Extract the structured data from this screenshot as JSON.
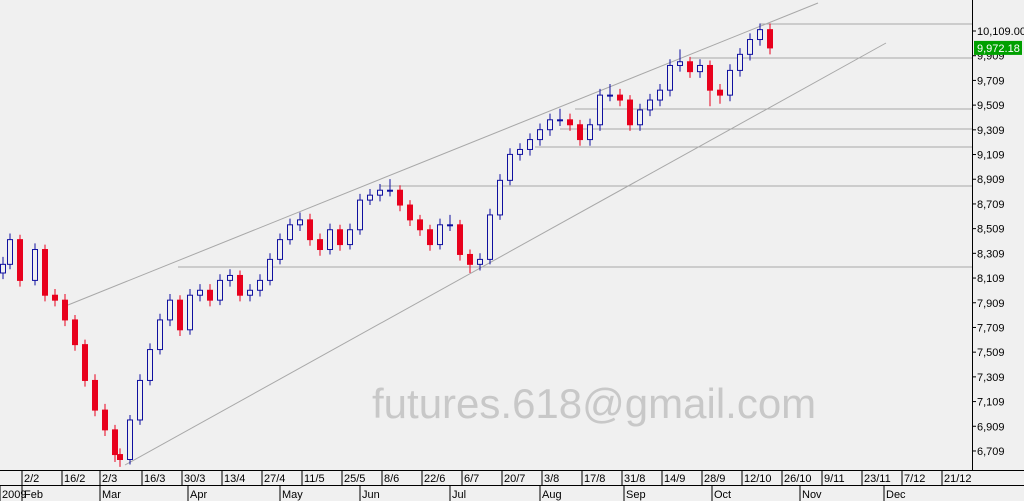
{
  "chart_data": {
    "type": "candlestick",
    "watermark": "futures.618@gmail.com",
    "xlim": [
      0,
      243
    ],
    "ylim": [
      6555,
      10360
    ],
    "yticks": [
      {
        "value": 6709,
        "label": "6,709"
      },
      {
        "value": 6909,
        "label": "6,909"
      },
      {
        "value": 7109,
        "label": "7,109"
      },
      {
        "value": 7309,
        "label": "7,309"
      },
      {
        "value": 7509,
        "label": "7,509"
      },
      {
        "value": 7709,
        "label": "7,709"
      },
      {
        "value": 7909,
        "label": "7,909"
      },
      {
        "value": 8109,
        "label": "8,109"
      },
      {
        "value": 8309,
        "label": "8,309"
      },
      {
        "value": 8509,
        "label": "8,509"
      },
      {
        "value": 8709,
        "label": "8,709"
      },
      {
        "value": 8909,
        "label": "8,909"
      },
      {
        "value": 9109,
        "label": "9,109"
      },
      {
        "value": 9309,
        "label": "9,309"
      },
      {
        "value": 9509,
        "label": "9,509"
      },
      {
        "value": 9709,
        "label": "9,709"
      },
      {
        "value": 9909,
        "label": "9,909"
      },
      {
        "value": 10109,
        "label": "10,109.00"
      }
    ],
    "xticks": [
      {
        "value": 5.5,
        "label": "2/2"
      },
      {
        "value": 15.5,
        "label": "16/2"
      },
      {
        "value": 25,
        "label": "2/3"
      },
      {
        "value": 35.5,
        "label": "16/3"
      },
      {
        "value": 45.5,
        "label": "30/3"
      },
      {
        "value": 55.5,
        "label": "13/4"
      },
      {
        "value": 65.5,
        "label": "27/4"
      },
      {
        "value": 75.5,
        "label": "11/5"
      },
      {
        "value": 85.5,
        "label": "25/5"
      },
      {
        "value": 95.5,
        "label": "8/6"
      },
      {
        "value": 105.5,
        "label": "22/6"
      },
      {
        "value": 115.5,
        "label": "6/7"
      },
      {
        "value": 125.5,
        "label": "20/7"
      },
      {
        "value": 135.5,
        "label": "3/8"
      },
      {
        "value": 145.5,
        "label": "17/8"
      },
      {
        "value": 155.5,
        "label": "31/8"
      },
      {
        "value": 165.5,
        "label": "14/9"
      },
      {
        "value": 175.5,
        "label": "28/9"
      },
      {
        "value": 185.5,
        "label": "12/10"
      },
      {
        "value": 195.5,
        "label": "26/10"
      },
      {
        "value": 205.5,
        "label": "9/11"
      },
      {
        "value": 215.5,
        "label": "23/11"
      },
      {
        "value": 225.5,
        "label": "7/12"
      },
      {
        "value": 235.5,
        "label": "21/12"
      }
    ],
    "month_ticks": [
      {
        "value": 0,
        "label": "2009"
      },
      {
        "value": 5.5,
        "label": "Feb"
      },
      {
        "value": 25,
        "label": "Mar"
      },
      {
        "value": 47,
        "label": "Apr"
      },
      {
        "value": 70,
        "label": "May"
      },
      {
        "value": 90,
        "label": "Jun"
      },
      {
        "value": 112.5,
        "label": "Jul"
      },
      {
        "value": 135,
        "label": "Aug"
      },
      {
        "value": 156,
        "label": "Sep"
      },
      {
        "value": 178,
        "label": "Oct"
      },
      {
        "value": 200,
        "label": "Nov"
      },
      {
        "value": 221,
        "label": "Dec"
      }
    ],
    "last_price": {
      "value": 9972.18,
      "label": "9,972.18"
    },
    "up_color": "#1010a0",
    "down_color": "#e8001c",
    "price_box_color": "#00a000",
    "candles": {
      "x": [
        0.75,
        2.5,
        5,
        8.75,
        11.25,
        13.75,
        16.25,
        18.75,
        21.25,
        23.75,
        26.25,
        28.75,
        30,
        32.5,
        35,
        37.5,
        40,
        42.5,
        45,
        47.5,
        50,
        52.5,
        55,
        57.5,
        60,
        62.5,
        65,
        67.5,
        70,
        72.5,
        75,
        77.5,
        80,
        82.5,
        85,
        87.5,
        90,
        92.5,
        95,
        97.5,
        100,
        102.5,
        105,
        107.5,
        110,
        112.5,
        115,
        117.5,
        120,
        122.5,
        125,
        127.5,
        130,
        132.5,
        135,
        137.5,
        140,
        142.5,
        145,
        147.5,
        150,
        152.5,
        155,
        157.5,
        160,
        162.5,
        165,
        167.5,
        170,
        172.5,
        175,
        177.5,
        180,
        182.5,
        185,
        187.5,
        190,
        192.5
      ],
      "open": [
        8150,
        8220,
        8420,
        8090,
        8340,
        7970,
        7930,
        7770,
        7570,
        7280,
        7040,
        6880,
        6680,
        6640,
        6960,
        7280,
        7530,
        7770,
        7930,
        7690,
        7970,
        8010,
        7930,
        8090,
        8130,
        7970,
        8010,
        8090,
        8260,
        8420,
        8540,
        8580,
        8420,
        8340,
        8500,
        8380,
        8500,
        8740,
        8780,
        8820,
        8820,
        8700,
        8580,
        8500,
        8380,
        8540,
        8540,
        8300,
        8220,
        8260,
        8620,
        8900,
        9110,
        9150,
        9230,
        9310,
        9390,
        9390,
        9350,
        9230,
        9350,
        9590,
        9590,
        9550,
        9350,
        9470,
        9550,
        9630,
        9830,
        9860,
        9780,
        9830,
        9630,
        9590,
        9790,
        9920,
        10040,
        10120
      ],
      "high": [
        8280,
        8470,
        8460,
        8390,
        8380,
        8020,
        7980,
        7810,
        7610,
        7330,
        7090,
        6920,
        6730,
        7000,
        7330,
        7580,
        7820,
        7980,
        7970,
        8020,
        8060,
        8060,
        8140,
        8180,
        8170,
        8060,
        8140,
        8310,
        8470,
        8590,
        8640,
        8630,
        8470,
        8550,
        8540,
        8550,
        8790,
        8830,
        8870,
        8910,
        8860,
        8740,
        8620,
        8540,
        8590,
        8620,
        8580,
        8340,
        8310,
        8670,
        8950,
        9160,
        9200,
        9280,
        9360,
        9440,
        9480,
        9440,
        9390,
        9400,
        9640,
        9680,
        9640,
        9590,
        9520,
        9600,
        9680,
        9880,
        9960,
        9900,
        9880,
        9870,
        9680,
        9840,
        9970,
        10090,
        10170,
        10170
      ],
      "low": [
        8100,
        8180,
        8040,
        8050,
        7920,
        7880,
        7720,
        7520,
        7230,
        6990,
        6830,
        6620,
        6580,
        6600,
        6920,
        7240,
        7490,
        7720,
        7640,
        7650,
        7920,
        7880,
        7890,
        8040,
        7920,
        7920,
        7960,
        8050,
        8220,
        8380,
        8490,
        8370,
        8290,
        8300,
        8330,
        8340,
        8460,
        8700,
        8730,
        8770,
        8650,
        8530,
        8450,
        8330,
        8340,
        8490,
        8250,
        8150,
        8170,
        8220,
        8580,
        8860,
        9060,
        9100,
        9180,
        9260,
        9340,
        9300,
        9180,
        9180,
        9300,
        9540,
        9500,
        9300,
        9300,
        9420,
        9500,
        9580,
        9780,
        9730,
        9730,
        9500,
        9520,
        9540,
        9740,
        9870,
        9990,
        9920
      ],
      "close": [
        8220,
        8420,
        8090,
        8340,
        7970,
        7930,
        7770,
        7570,
        7280,
        7040,
        6880,
        6680,
        6640,
        6960,
        7280,
        7530,
        7770,
        7930,
        7690,
        7970,
        8010,
        7930,
        8090,
        8130,
        7970,
        8010,
        8090,
        8260,
        8420,
        8540,
        8580,
        8420,
        8340,
        8500,
        8380,
        8500,
        8740,
        8780,
        8820,
        8820,
        8700,
        8580,
        8500,
        8380,
        8540,
        8540,
        8300,
        8220,
        8260,
        8620,
        8900,
        9110,
        9150,
        9230,
        9310,
        9390,
        9390,
        9350,
        9230,
        9350,
        9590,
        9590,
        9550,
        9350,
        9470,
        9550,
        9630,
        9830,
        9860,
        9780,
        9830,
        9630,
        9590,
        9790,
        9920,
        10040,
        10120,
        9972.18
      ]
    }
  }
}
